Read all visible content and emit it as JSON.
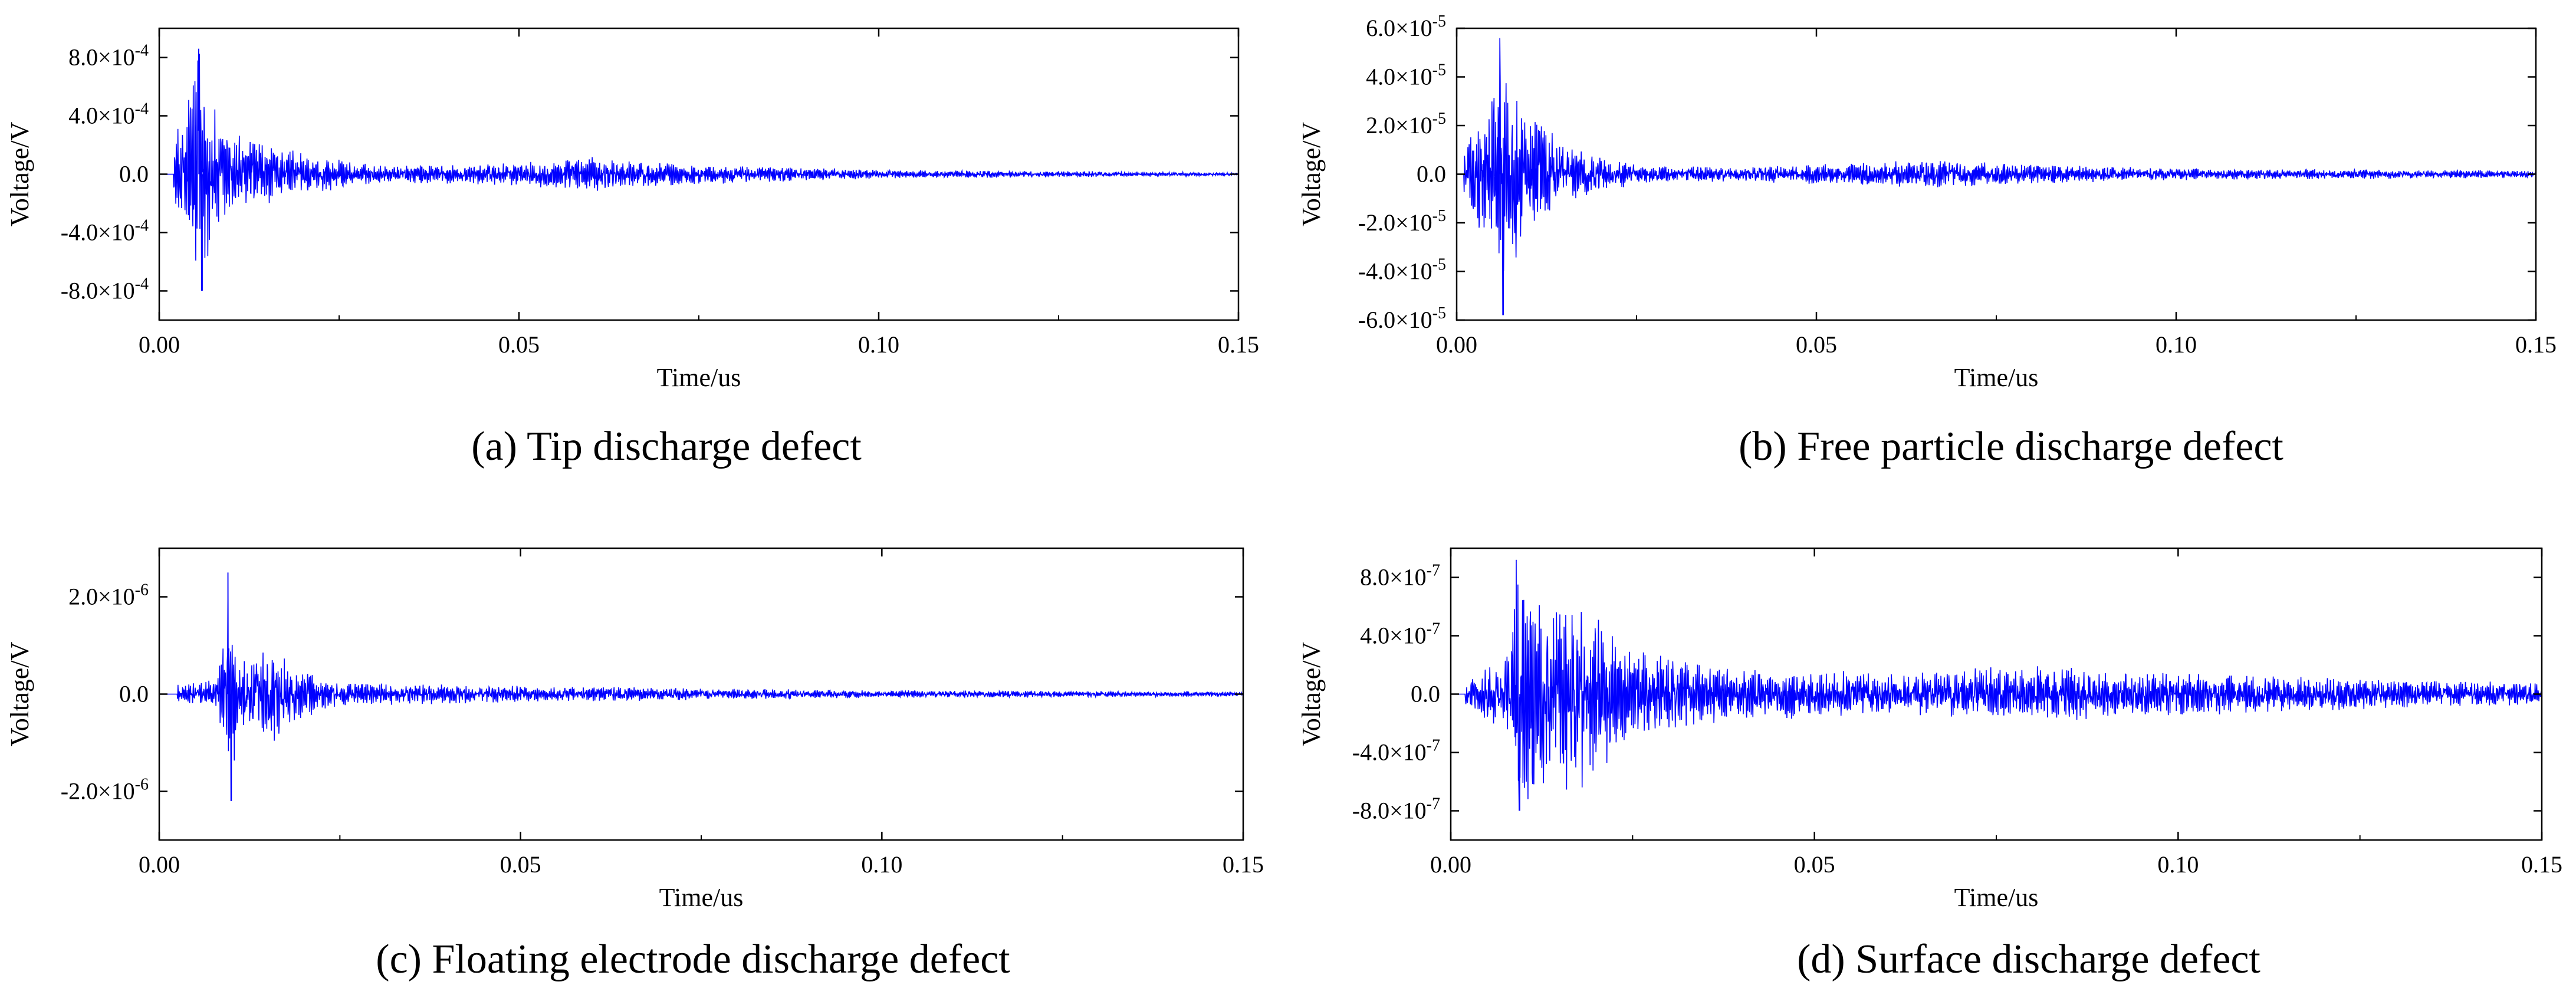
{
  "chart_data": [
    {
      "type": "line",
      "caption": "(a) Tip discharge defect",
      "xlabel": "Time/us",
      "ylabel": "Voltage/V",
      "xlim": [
        0,
        0.15
      ],
      "ylim": [
        -0.001,
        0.001
      ],
      "xticks": [
        0.0,
        0.05,
        0.1,
        0.15
      ],
      "xtick_labels": [
        "0.00",
        "0.05",
        "0.10",
        "0.15"
      ],
      "yticks": [
        -0.0008,
        -0.0004,
        0.0,
        0.0004,
        0.0008
      ],
      "ytick_labels": [
        {
          "mant": "-8.0",
          "exp": "-4",
          "plain": ""
        },
        {
          "mant": "-4.0",
          "exp": "-4",
          "plain": ""
        },
        {
          "mant": "",
          "exp": "",
          "plain": "0.0"
        },
        {
          "mant": "4.0",
          "exp": "-4",
          "plain": ""
        },
        {
          "mant": "8.0",
          "exp": "-4",
          "plain": ""
        }
      ],
      "series_color": "#0000ff",
      "signal_start": 0.002,
      "peak_time": 0.0055,
      "peak_max": 0.00086,
      "peak_min": -0.0008,
      "envelope": [
        [
          0.0,
          0.0
        ],
        [
          0.002,
          0.0002
        ],
        [
          0.0055,
          0.00086
        ],
        [
          0.008,
          0.0004
        ],
        [
          0.012,
          0.00025
        ],
        [
          0.02,
          0.00015
        ],
        [
          0.03,
          6e-05
        ],
        [
          0.05,
          8e-05
        ],
        [
          0.06,
          0.00012
        ],
        [
          0.07,
          8e-05
        ],
        [
          0.1,
          3e-05
        ],
        [
          0.13,
          2e-05
        ],
        [
          0.15,
          1e-05
        ]
      ]
    },
    {
      "type": "line",
      "caption": "(b) Free particle discharge defect",
      "xlabel": "Time/us",
      "ylabel": "Voltage/V",
      "xlim": [
        0,
        0.15
      ],
      "ylim": [
        -6e-05,
        6e-05
      ],
      "xticks": [
        0.0,
        0.05,
        0.1,
        0.15
      ],
      "xtick_labels": [
        "0.00",
        "0.05",
        "0.10",
        "0.15"
      ],
      "yticks": [
        -6e-05,
        -4e-05,
        -2e-05,
        0.0,
        2e-05,
        4e-05,
        6e-05
      ],
      "ytick_labels": [
        {
          "mant": "-6.0",
          "exp": "-5",
          "plain": ""
        },
        {
          "mant": "-4.0",
          "exp": "-5",
          "plain": ""
        },
        {
          "mant": "-2.0",
          "exp": "-5",
          "plain": ""
        },
        {
          "mant": "",
          "exp": "",
          "plain": "0.0"
        },
        {
          "mant": "2.0",
          "exp": "-5",
          "plain": ""
        },
        {
          "mant": "4.0",
          "exp": "-5",
          "plain": ""
        },
        {
          "mant": "6.0",
          "exp": "-5",
          "plain": ""
        }
      ],
      "series_color": "#0000ff",
      "signal_start": 0.001,
      "peak_time": 0.006,
      "peak_max": 5.6e-05,
      "peak_min": -5.8e-05,
      "envelope": [
        [
          0.0,
          0.0
        ],
        [
          0.001,
          1e-05
        ],
        [
          0.004,
          3e-05
        ],
        [
          0.006,
          5.6e-05
        ],
        [
          0.009,
          3e-05
        ],
        [
          0.015,
          1.2e-05
        ],
        [
          0.025,
          4e-06
        ],
        [
          0.04,
          3e-06
        ],
        [
          0.065,
          6e-06
        ],
        [
          0.08,
          4e-06
        ],
        [
          0.1,
          2.5e-06
        ],
        [
          0.15,
          1.5e-06
        ]
      ]
    },
    {
      "type": "line",
      "caption": "(c) Floating electrode discharge defect",
      "xlabel": "Time/us",
      "ylabel": "Voltage/V",
      "xlim": [
        0,
        0.15
      ],
      "ylim": [
        -3e-06,
        3e-06
      ],
      "xticks": [
        0.0,
        0.05,
        0.1,
        0.15
      ],
      "xtick_labels": [
        "0.00",
        "0.05",
        "0.10",
        "0.15"
      ],
      "yticks": [
        -2e-06,
        0.0,
        2e-06
      ],
      "ytick_labels": [
        {
          "mant": "-2.0",
          "exp": "-6",
          "plain": ""
        },
        {
          "mant": "",
          "exp": "",
          "plain": "0.0"
        },
        {
          "mant": "2.0",
          "exp": "-6",
          "plain": ""
        }
      ],
      "series_color": "#0000ff",
      "signal_start": 0.0025,
      "peak_time": 0.0095,
      "peak_max": 2.5e-06,
      "peak_min": -2.2e-06,
      "envelope": [
        [
          0.0,
          0.0
        ],
        [
          0.0025,
          2e-07
        ],
        [
          0.008,
          3e-07
        ],
        [
          0.0095,
          2.5e-06
        ],
        [
          0.011,
          6e-07
        ],
        [
          0.015,
          1.2e-06
        ],
        [
          0.018,
          6e-07
        ],
        [
          0.025,
          2.5e-07
        ],
        [
          0.06,
          1.5e-07
        ],
        [
          0.1,
          8e-08
        ],
        [
          0.15,
          5e-08
        ]
      ]
    },
    {
      "type": "line",
      "caption": "(d) Surface discharge defect",
      "xlabel": "Time/us",
      "ylabel": "Voltage/V",
      "xlim": [
        0,
        0.15
      ],
      "ylim": [
        -1e-06,
        1e-06
      ],
      "xticks": [
        0.0,
        0.05,
        0.1,
        0.15
      ],
      "xtick_labels": [
        "0.00",
        "0.05",
        "0.10",
        "0.15"
      ],
      "yticks": [
        -8e-07,
        -4e-07,
        0.0,
        4e-07,
        8e-07
      ],
      "ytick_labels": [
        {
          "mant": "-8.0",
          "exp": "-7",
          "plain": ""
        },
        {
          "mant": "-4.0",
          "exp": "-7",
          "plain": ""
        },
        {
          "mant": "",
          "exp": "",
          "plain": "0.0"
        },
        {
          "mant": "4.0",
          "exp": "-7",
          "plain": ""
        },
        {
          "mant": "8.0",
          "exp": "-7",
          "plain": ""
        }
      ],
      "series_color": "#0000ff",
      "signal_start": 0.002,
      "peak_time": 0.009,
      "peak_max": 9.2e-07,
      "peak_min": -8e-07,
      "envelope": [
        [
          0.0,
          0.0
        ],
        [
          0.002,
          8e-08
        ],
        [
          0.008,
          3e-07
        ],
        [
          0.009,
          9e-07
        ],
        [
          0.013,
          6.5e-07
        ],
        [
          0.017,
          7e-07
        ],
        [
          0.025,
          3e-07
        ],
        [
          0.04,
          1.8e-07
        ],
        [
          0.06,
          1.5e-07
        ],
        [
          0.08,
          2e-07
        ],
        [
          0.1,
          1.5e-07
        ],
        [
          0.13,
          1e-07
        ],
        [
          0.15,
          8e-08
        ]
      ]
    }
  ]
}
